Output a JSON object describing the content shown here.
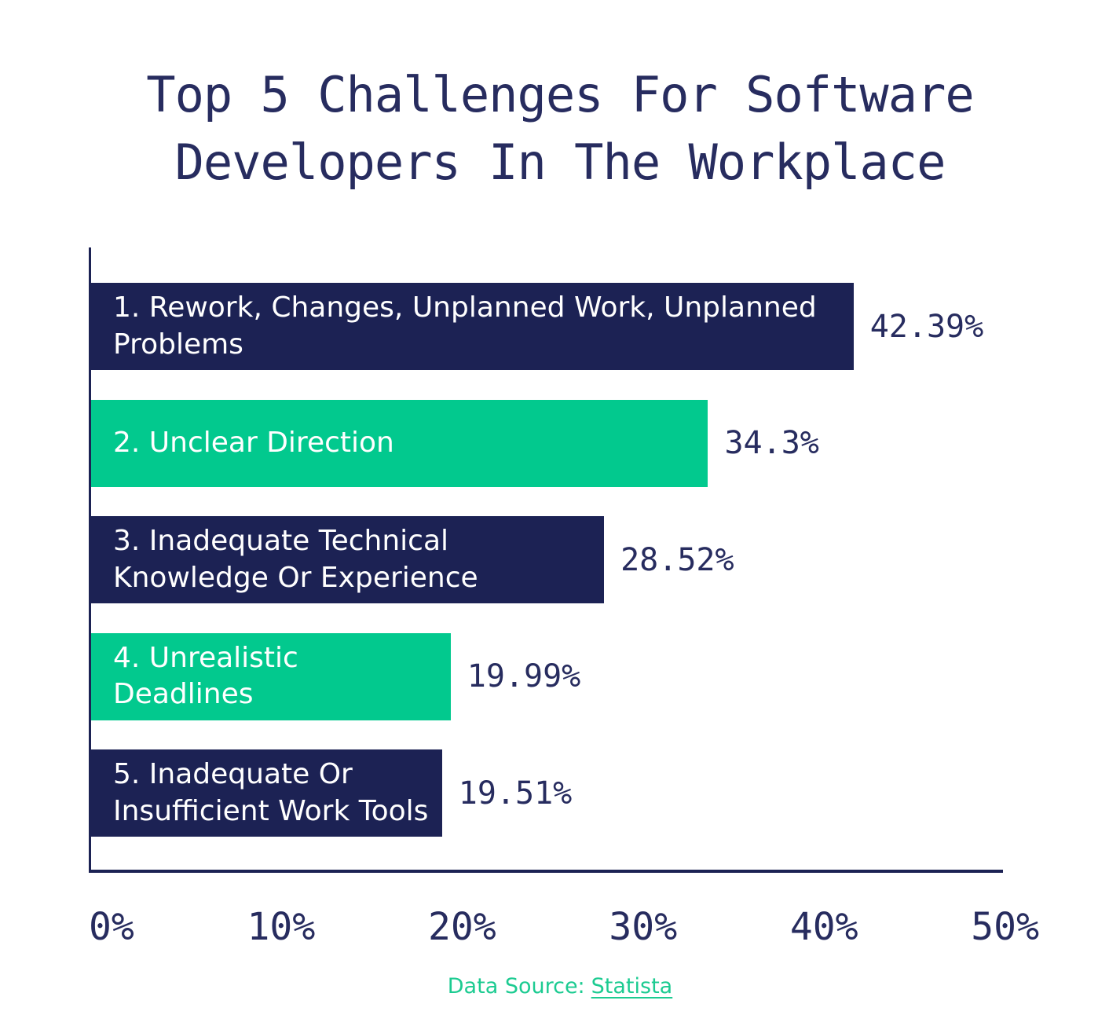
{
  "title": "Top 5 Challenges For Software\nDevelopers In The Workplace",
  "chart_data": {
    "type": "bar",
    "orientation": "horizontal",
    "title": "Top 5 Challenges For Software Developers In The Workplace",
    "xlim": [
      0,
      50
    ],
    "x_ticks": [
      "0%",
      "10%",
      "20%",
      "30%",
      "40%",
      "50%"
    ],
    "grid": false,
    "legend": false,
    "categories": [
      "1. Rework, Changes, Unplanned Work, Unplanned Problems",
      "2. Unclear Direction",
      "3. Inadequate Technical Knowledge Or Experience",
      "4. Unrealistic Deadlines",
      "5. Inadequate Or Insufficient Work Tools"
    ],
    "values": [
      42.39,
      34.3,
      28.52,
      19.99,
      19.51
    ],
    "bars": [
      {
        "label": "1. Rework, Changes, Unplanned Work, Unplanned\nProblems",
        "value": 42.39,
        "value_label": "42.39%",
        "color": "#1c2254"
      },
      {
        "label": "2. Unclear Direction",
        "value": 34.3,
        "value_label": "34.3%",
        "color": "#02c98e"
      },
      {
        "label": "3. Inadequate Technical\nKnowledge Or Experience",
        "value": 28.52,
        "value_label": "28.52%",
        "color": "#1c2254"
      },
      {
        "label": "4. Unrealistic\nDeadlines",
        "value": 19.99,
        "value_label": "19.99%",
        "color": "#02c98e"
      },
      {
        "label": "5. Inadequate Or\nInsufficient Work Tools",
        "value": 19.51,
        "value_label": "19.51%",
        "color": "#1c2254"
      }
    ]
  },
  "footer": {
    "label": "Data Source:",
    "link_text": "Statista"
  },
  "colors": {
    "navy": "#1c2254",
    "green": "#02c98e",
    "text_navy": "#272c5f",
    "footer_green": "#1ccb91",
    "background": "#ffffff"
  }
}
